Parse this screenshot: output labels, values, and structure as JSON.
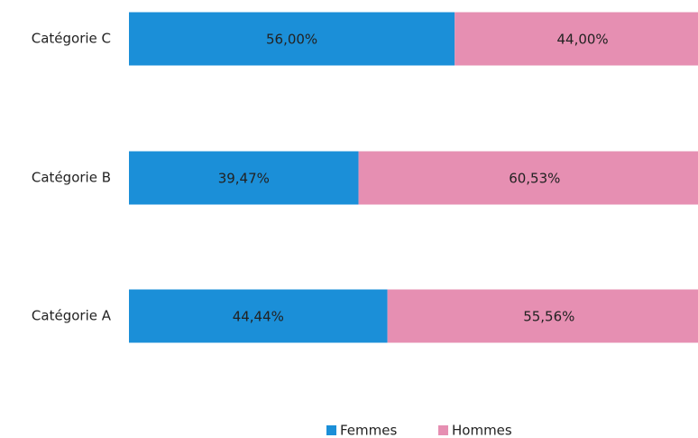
{
  "chart_data": {
    "type": "stacked-bar-horizontal",
    "categories": [
      "Catégorie A",
      "Catégorie B",
      "Catégorie C"
    ],
    "series": [
      {
        "name": "Femmes",
        "color": "#1b8fd8",
        "values": [
          44.44,
          39.47,
          56.0
        ],
        "value_labels": [
          "44,44%",
          "39,47%",
          "56,00%"
        ]
      },
      {
        "name": "Hommes",
        "color": "#e68fb2",
        "values": [
          55.56,
          60.53,
          44.0
        ],
        "value_labels": [
          "55,56%",
          "60,53%",
          "44,00%"
        ]
      }
    ],
    "legend": "bottom"
  }
}
